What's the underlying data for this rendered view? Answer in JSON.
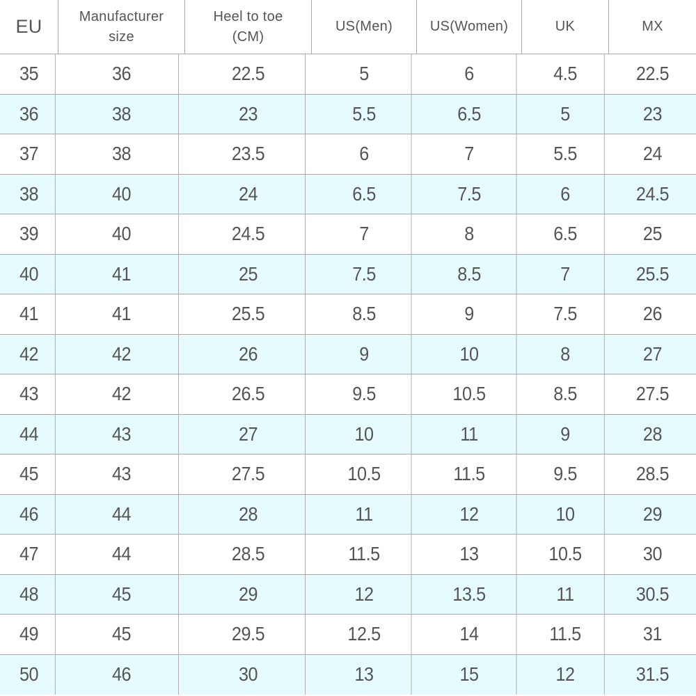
{
  "headers": [
    "EU",
    "Manufacturer size",
    "Heel to toe (CM)",
    "US(Men)",
    "US(Women)",
    "UK",
    "MX"
  ],
  "rows": [
    [
      "35",
      "36",
      "22.5",
      "5",
      "6",
      "4.5",
      "22.5"
    ],
    [
      "36",
      "38",
      "23",
      "5.5",
      "6.5",
      "5",
      "23"
    ],
    [
      "37",
      "38",
      "23.5",
      "6",
      "7",
      "5.5",
      "24"
    ],
    [
      "38",
      "40",
      "24",
      "6.5",
      "7.5",
      "6",
      "24.5"
    ],
    [
      "39",
      "40",
      "24.5",
      "7",
      "8",
      "6.5",
      "25"
    ],
    [
      "40",
      "41",
      "25",
      "7.5",
      "8.5",
      "7",
      "25.5"
    ],
    [
      "41",
      "41",
      "25.5",
      "8.5",
      "9",
      "7.5",
      "26"
    ],
    [
      "42",
      "42",
      "26",
      "9",
      "10",
      "8",
      "27"
    ],
    [
      "43",
      "42",
      "26.5",
      "9.5",
      "10.5",
      "8.5",
      "27.5"
    ],
    [
      "44",
      "43",
      "27",
      "10",
      "11",
      "9",
      "28"
    ],
    [
      "45",
      "43",
      "27.5",
      "10.5",
      "11.5",
      "9.5",
      "28.5"
    ],
    [
      "46",
      "44",
      "28",
      "11",
      "12",
      "10",
      "29"
    ],
    [
      "47",
      "44",
      "28.5",
      "11.5",
      "13",
      "10.5",
      "30"
    ],
    [
      "48",
      "45",
      "29",
      "12",
      "13.5",
      "11",
      "30.5"
    ],
    [
      "49",
      "45",
      "29.5",
      "12.5",
      "14",
      "11.5",
      "31"
    ],
    [
      "50",
      "46",
      "30",
      "13",
      "15",
      "12",
      "31.5"
    ]
  ],
  "colors": {
    "band_even": "#e6fbfd",
    "band_odd": "#ffffff",
    "grid_line": "#a8a8a8",
    "text": "#555555"
  }
}
